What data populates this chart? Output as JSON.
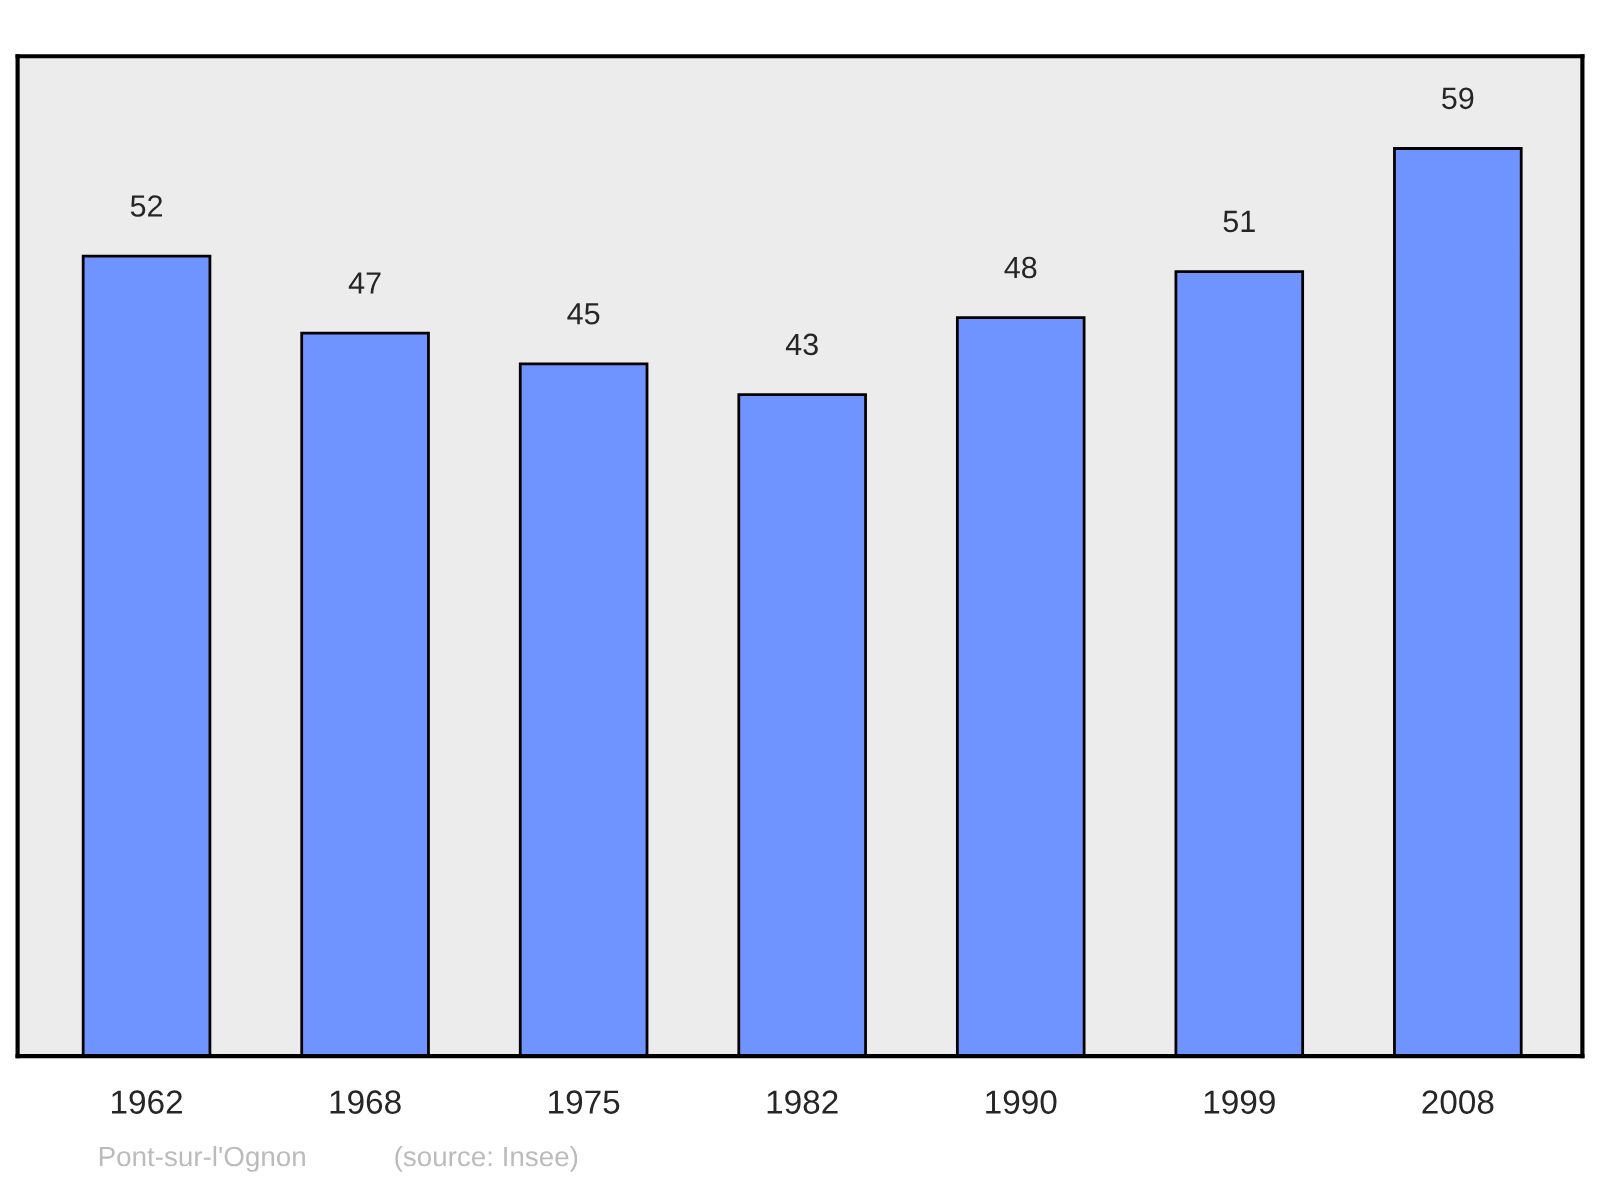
{
  "chart_data": {
    "type": "bar",
    "categories": [
      "1962",
      "1968",
      "1975",
      "1982",
      "1990",
      "1999",
      "2008"
    ],
    "values": [
      52,
      47,
      45,
      43,
      48,
      51,
      59
    ],
    "color": "#7094ff",
    "ylim": [
      0,
      65
    ],
    "tick_labels": "x",
    "data_labels": true,
    "grid": false,
    "legend": false,
    "annotations": [
      "Pont-sur-l'Ognon",
      "(source: Insee)"
    ]
  }
}
